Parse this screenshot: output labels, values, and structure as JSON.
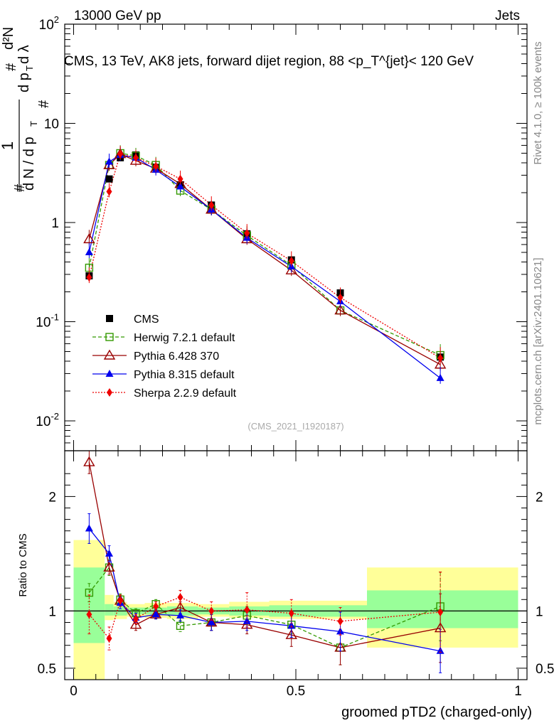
{
  "header": {
    "left": "13000 GeV pp",
    "right": "Jets",
    "side_top": "Rivet 4.1.0, ≥ 100k events",
    "side_bottom": "mcplots.cern.ch [arXiv:2401.10621]",
    "watermark": "(CMS_2021_I1920187)"
  },
  "colors": {
    "cms": "#000000",
    "herwig": "#339900",
    "pythia6": "#990000",
    "pythia8": "#0000ee",
    "sherpa": "#ee0000",
    "band_outer": "#ffff99",
    "band_inner": "#99ff99"
  },
  "chart_data": [
    {
      "type": "scatter",
      "title": "CMS, 13 TeV, AK8 jets, forward dijet region, 88 <p_T^{jet}< 120 GeV",
      "xlabel": "groomed pTD2 (charged-only)",
      "ylabel": "1/(dN/dp_T) d²N/(dp_T dλ)",
      "yscale": "log",
      "xlim": [
        -0.02,
        1.02
      ],
      "ylim": [
        0.005,
        100
      ],
      "y_tick_labels": [
        "10^-2",
        "10^-1",
        "1",
        "10",
        "10^2"
      ],
      "x": [
        0.035,
        0.08,
        0.105,
        0.14,
        0.185,
        0.24,
        0.31,
        0.39,
        0.49,
        0.6,
        0.825
      ],
      "series": [
        {
          "name": "CMS",
          "marker": "square",
          "values": [
            0.29,
            2.75,
            4.5,
            4.8,
            3.6,
            2.4,
            1.5,
            0.77,
            0.42,
            0.195,
            0.044
          ]
        },
        {
          "name": "Herwig 7.2.1 default",
          "marker": "open-square",
          "dash": "dashed",
          "values": [
            0.35,
            3.8,
            5.0,
            4.7,
            3.8,
            2.1,
            1.35,
            0.74,
            0.37,
            0.13,
            0.046
          ]
        },
        {
          "name": "Pythia 6.428 370",
          "marker": "open-triangle",
          "dash": "solid",
          "values": [
            0.68,
            3.8,
            4.9,
            4.2,
            3.5,
            2.45,
            1.35,
            0.68,
            0.33,
            0.13,
            0.037
          ]
        },
        {
          "name": "Pythia 8.315 default",
          "marker": "triangle",
          "dash": "solid",
          "values": [
            0.5,
            4.1,
            4.8,
            4.5,
            3.4,
            2.3,
            1.35,
            0.7,
            0.36,
            0.16,
            0.027
          ]
        },
        {
          "name": "Sherpa 2.2.9 default",
          "marker": "diamond",
          "dash": "dotted",
          "values": [
            0.28,
            2.05,
            4.9,
            4.5,
            3.7,
            2.75,
            1.5,
            0.78,
            0.41,
            0.175,
            0.043
          ]
        }
      ]
    },
    {
      "type": "scatter",
      "title": "",
      "xlabel": "groomed pTD2 (charged-only)",
      "ylabel": "Ratio to CMS",
      "xlim": [
        -0.02,
        1.02
      ],
      "ylim": [
        0.4,
        2.4
      ],
      "y_ticks": [
        0.5,
        1,
        2
      ],
      "x_ticks": [
        0,
        0.5,
        1
      ],
      "x": [
        0.035,
        0.08,
        0.105,
        0.14,
        0.185,
        0.24,
        0.31,
        0.39,
        0.49,
        0.6,
        0.825
      ],
      "bands": {
        "edges": [
          0,
          0.07,
          0.09,
          0.12,
          0.16,
          0.21,
          0.28,
          0.35,
          0.44,
          0.66,
          1.0
        ],
        "outer_low": [
          0.01,
          0.92,
          0.93,
          0.95,
          0.94,
          0.93,
          0.95,
          0.94,
          0.93,
          0.68
        ],
        "outer_high": [
          1.62,
          1.14,
          1.08,
          1.06,
          1.07,
          1.07,
          1.06,
          1.08,
          1.09,
          1.38
        ],
        "inner_low": [
          0.72,
          0.96,
          0.96,
          0.97,
          0.97,
          0.96,
          0.97,
          0.96,
          0.95,
          0.85
        ],
        "inner_high": [
          1.38,
          1.06,
          1.04,
          1.03,
          1.03,
          1.04,
          1.03,
          1.04,
          1.05,
          1.18
        ]
      },
      "series": [
        {
          "name": "Herwig 7.2.1 default",
          "values": [
            1.16,
            1.38,
            1.1,
            0.98,
            1.06,
            0.87,
            0.9,
            0.96,
            0.88,
            0.68,
            1.04
          ],
          "err": [
            0.08,
            0.07,
            0.05,
            0.04,
            0.04,
            0.05,
            0.07,
            0.08,
            0.08,
            0.15,
            0.3
          ]
        },
        {
          "name": "Pythia 6.428 370",
          "values": [
            2.3,
            1.38,
            1.09,
            0.88,
            0.97,
            1.03,
            0.9,
            0.88,
            0.79,
            0.68,
            0.85
          ],
          "err": [
            0.1,
            0.06,
            0.05,
            0.05,
            0.04,
            0.05,
            0.07,
            0.08,
            0.1,
            0.15,
            0.3
          ]
        },
        {
          "name": "Pythia 8.315 default",
          "values": [
            1.72,
            1.5,
            1.07,
            0.94,
            0.97,
            0.96,
            0.9,
            0.91,
            0.87,
            0.82,
            0.65
          ],
          "err": [
            0.13,
            0.07,
            0.05,
            0.04,
            0.04,
            0.05,
            0.07,
            0.08,
            0.1,
            0.17,
            0.19
          ]
        },
        {
          "name": "Sherpa 2.2.9 default",
          "values": [
            0.97,
            0.76,
            1.09,
            0.93,
            1.04,
            1.12,
            1.0,
            1.01,
            0.98,
            0.91,
            0.99
          ],
          "err": [
            0.17,
            0.1,
            0.05,
            0.04,
            0.04,
            0.06,
            0.08,
            0.15,
            0.12,
            0.12,
            0.35
          ]
        }
      ]
    }
  ]
}
